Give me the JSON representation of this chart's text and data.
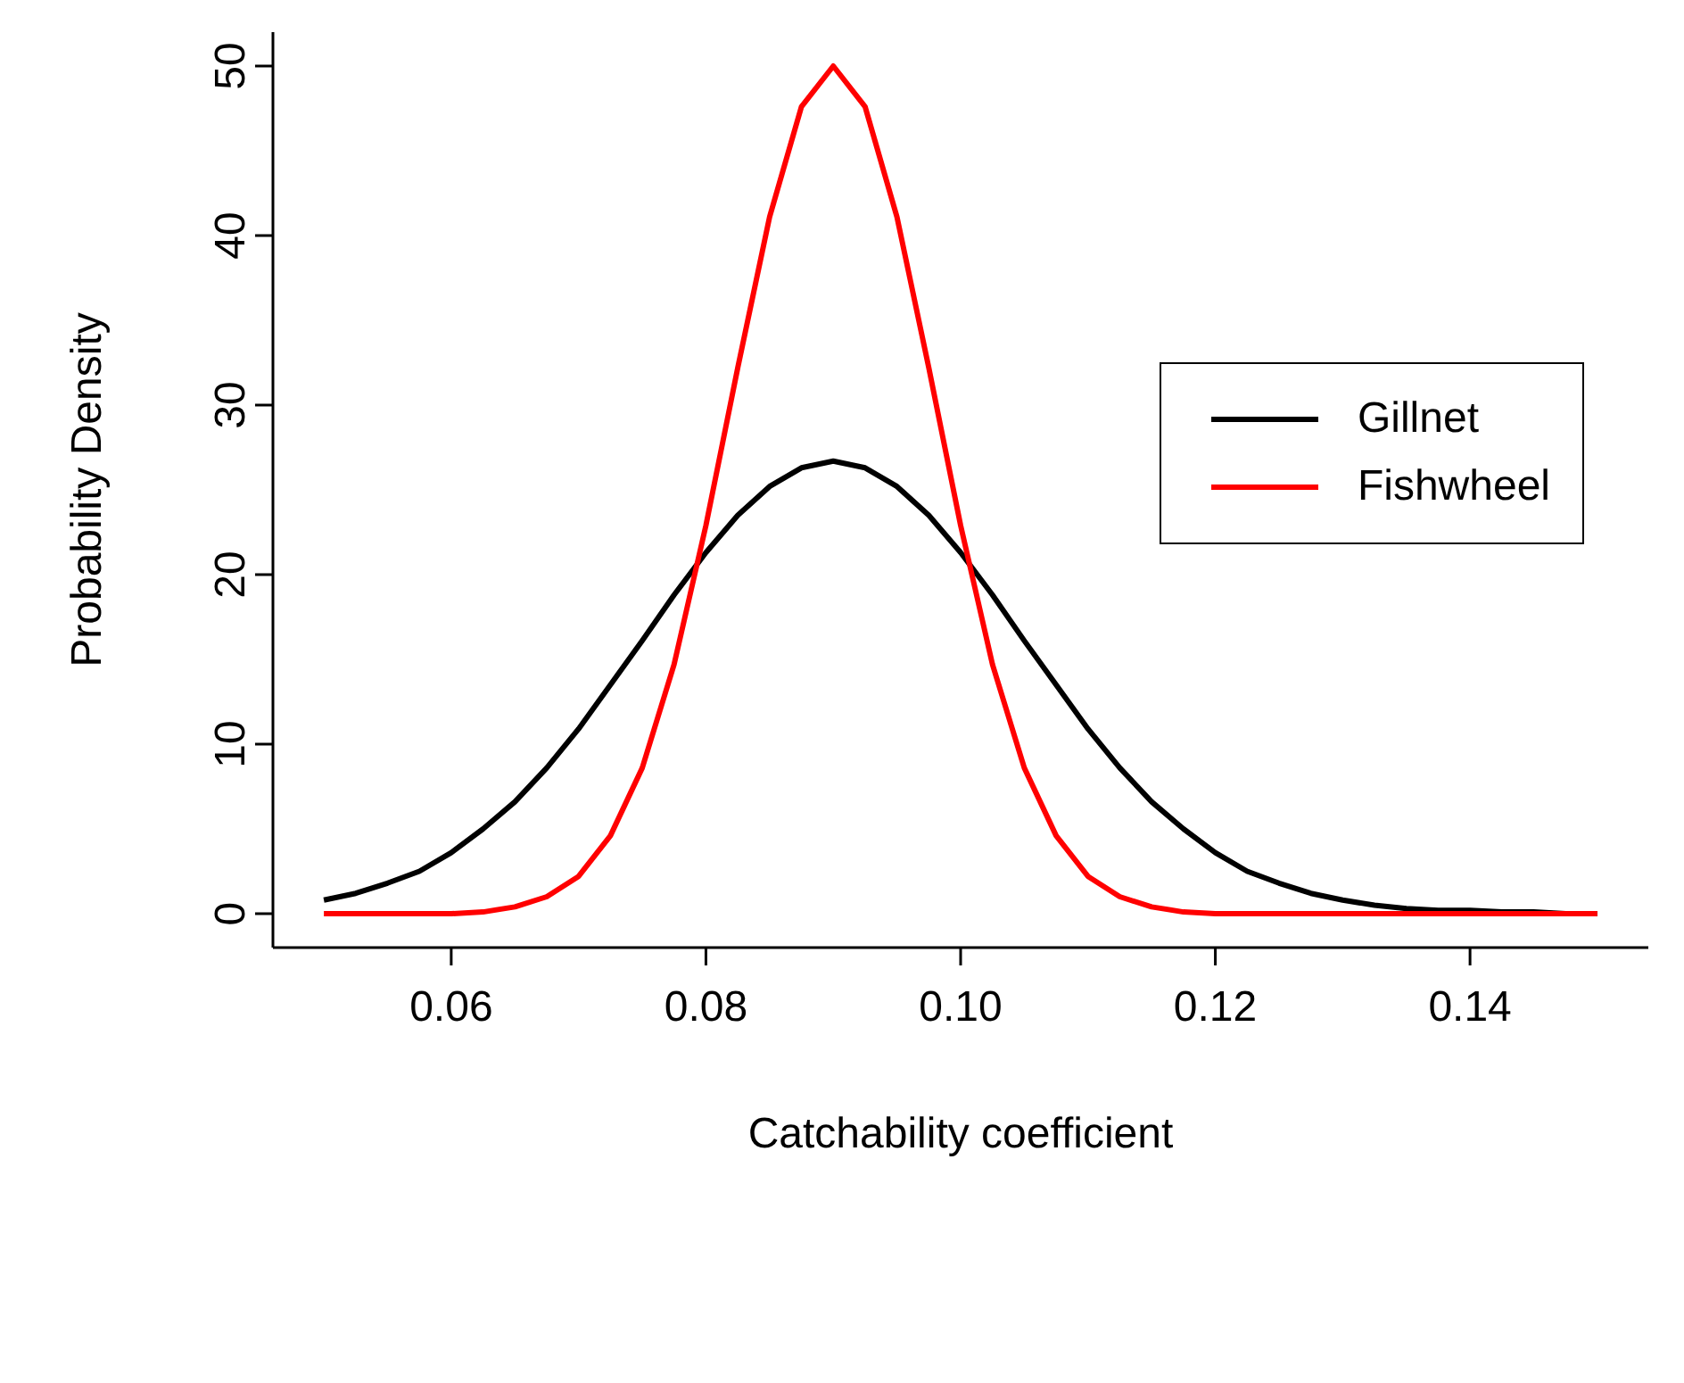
{
  "chart_data": {
    "type": "line",
    "xlabel": "Catchability coefficient",
    "ylabel": "Probability Density",
    "x": [
      0.05,
      0.0525,
      0.055,
      0.0575,
      0.06,
      0.0625,
      0.065,
      0.0675,
      0.07,
      0.0725,
      0.075,
      0.0775,
      0.08,
      0.0825,
      0.085,
      0.0875,
      0.09,
      0.0925,
      0.095,
      0.0975,
      0.1,
      0.1025,
      0.105,
      0.1075,
      0.11,
      0.1125,
      0.115,
      0.1175,
      0.12,
      0.1225,
      0.125,
      0.1275,
      0.13,
      0.1325,
      0.135,
      0.1375,
      0.14,
      0.1425,
      0.145,
      0.1475,
      0.15
    ],
    "series": [
      {
        "name": "Gillnet",
        "color": "#000000",
        "values": [
          0.8,
          1.2,
          1.8,
          2.5,
          3.6,
          5,
          6.6,
          8.6,
          10.9,
          13.5,
          16.1,
          18.8,
          21.3,
          23.5,
          25.2,
          26.3,
          26.7,
          26.3,
          25.2,
          23.5,
          21.3,
          18.8,
          16.1,
          13.5,
          10.9,
          8.6,
          6.6,
          5,
          3.6,
          2.5,
          1.8,
          1.2,
          0.8,
          0.5,
          0.3,
          0.2,
          0.2,
          0.1,
          0.1,
          0,
          0
        ]
      },
      {
        "name": "Fishwheel",
        "color": "#ff0000",
        "values": [
          0,
          0,
          0,
          0,
          0,
          0.1,
          0.4,
          1,
          2.2,
          4.6,
          8.6,
          14.7,
          22.9,
          32.2,
          41.1,
          47.6,
          50,
          47.6,
          41.1,
          32.2,
          22.9,
          14.7,
          8.6,
          4.6,
          2.2,
          1,
          0.4,
          0.1,
          0,
          0,
          0,
          0,
          0,
          0,
          0,
          0,
          0,
          0,
          0,
          0,
          0
        ]
      }
    ],
    "xlim": [
      0.046,
      0.154
    ],
    "xticks": [
      {
        "value": 0.06,
        "label": "0.06"
      },
      {
        "value": 0.08,
        "label": "0.08"
      },
      {
        "value": 0.1,
        "label": "0.10"
      },
      {
        "value": 0.12,
        "label": "0.12"
      },
      {
        "value": 0.14,
        "label": "0.14"
      }
    ],
    "ylim": [
      -2,
      52
    ],
    "yticks": [
      0,
      10,
      20,
      30,
      40,
      50
    ],
    "legend": "top right",
    "marker": "none",
    "line_style": "solid",
    "grid": false
  }
}
